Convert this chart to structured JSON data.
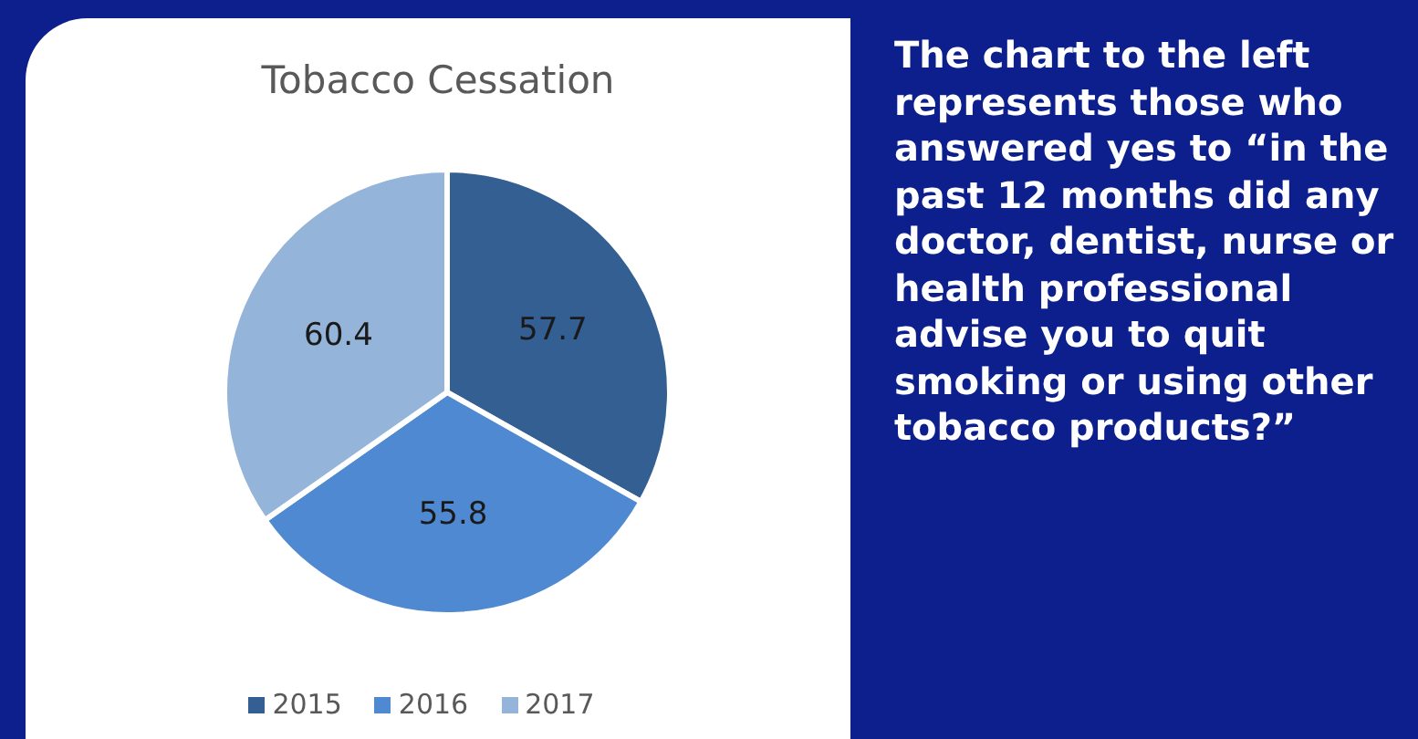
{
  "chart_data": {
    "type": "pie",
    "title": "Tobacco Cessation",
    "categories": [
      "2015",
      "2016",
      "2017"
    ],
    "values": [
      57.7,
      55.8,
      60.4
    ],
    "colors": [
      "#335f92",
      "#4f89d2",
      "#95b4da"
    ],
    "data_labels": true,
    "legend": "bottom",
    "annotations": [
      "The chart to the left represents those who answered yes to “in the past 12 months did any doctor, dentist, nurse or health professional advise you to quit smoking or using other tobacco products?”"
    ]
  }
}
